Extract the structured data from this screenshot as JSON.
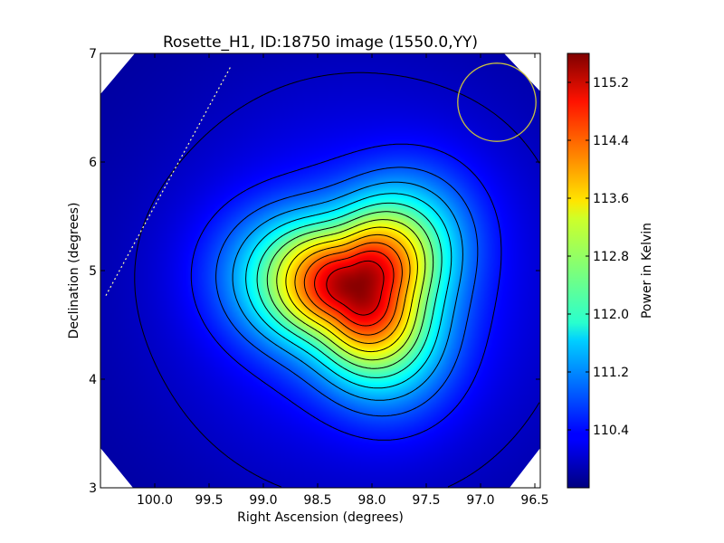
{
  "chart_data": {
    "type": "heatmap",
    "title": "Rosette_H1, ID:18750 image (1550.0,YY)",
    "xlabel": "Right Ascension (degrees)",
    "ylabel": "Declination (degrees)",
    "xlim": [
      100.5,
      96.45
    ],
    "ylim": [
      3,
      7
    ],
    "x_ticks": [
      100.0,
      99.5,
      99.0,
      98.5,
      98.0,
      97.5,
      97.0,
      96.5
    ],
    "x_tick_labels": [
      "100.0",
      "99.5",
      "99.0",
      "98.5",
      "98.0",
      "97.5",
      "97.0",
      "96.5"
    ],
    "y_ticks": [
      3,
      4,
      5,
      6,
      7
    ],
    "y_tick_labels": [
      "3",
      "4",
      "5",
      "6",
      "7"
    ],
    "peak": {
      "ra": 98.13,
      "dec": 4.85,
      "value": 115.5
    },
    "colormap": "jet",
    "colorbar": {
      "label": "Power in Kelvin",
      "range": [
        109.6,
        115.6
      ],
      "ticks": [
        110.4,
        111.2,
        112.0,
        112.8,
        113.6,
        114.4,
        115.2
      ],
      "tick_labels": [
        "110.4",
        "111.2",
        "112.0",
        "112.8",
        "113.6",
        "114.4",
        "115.2"
      ]
    },
    "contours": "black contour lines",
    "annotations": {
      "beam_circle": {
        "ra": 96.85,
        "dec": 6.55,
        "radius_deg": 0.36,
        "color": "#c8c040"
      },
      "dotted_line": {
        "from": [
          100.45,
          4.77
        ],
        "to": [
          99.3,
          6.88
        ],
        "color": "#ffffaa"
      }
    },
    "grid": false
  }
}
